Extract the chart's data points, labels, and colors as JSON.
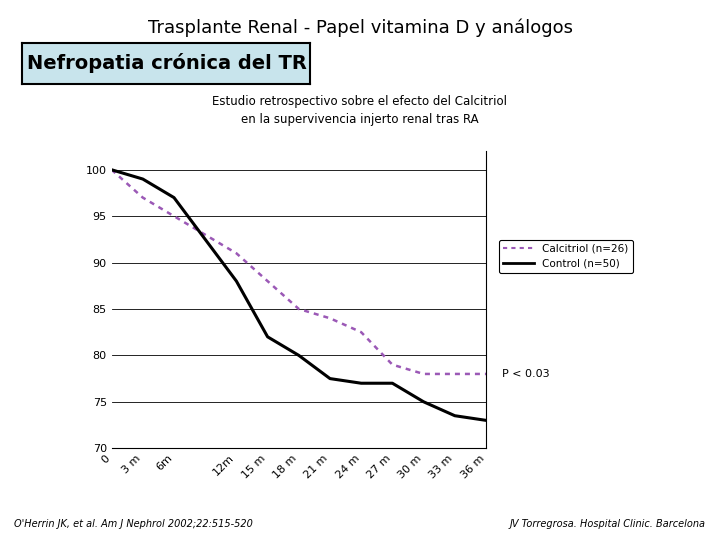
{
  "title": "Trasplante Renal - Papel vitamina D y análogos",
  "subtitle_line1": "Estudio retrospectivo sobre el efecto del Calcitriol",
  "subtitle_line2": "en la supervivencia injerto renal tras RA",
  "box_label": "Nefropatia crónica del TR",
  "x_labels": [
    "0",
    "3 m",
    "6m",
    "12m",
    "15 m",
    "18 m",
    "21 m",
    "24 m",
    "27 m",
    "30 m",
    "33 m",
    "36 m"
  ],
  "x_values": [
    0,
    3,
    6,
    12,
    15,
    18,
    21,
    24,
    27,
    30,
    33,
    36
  ],
  "calcitriol_y": [
    100,
    97,
    95,
    91,
    88,
    85,
    84,
    82.5,
    79,
    78,
    78,
    78
  ],
  "control_y": [
    100,
    99,
    97,
    88,
    82,
    80,
    77.5,
    77,
    77,
    75,
    73.5,
    73
  ],
  "calcitriol_color": "#9B59B6",
  "control_color": "#000000",
  "ylim": [
    70,
    102
  ],
  "yticks": [
    70,
    75,
    80,
    85,
    90,
    95,
    100
  ],
  "legend_calcitriol": "Calcitriol (n=26)",
  "legend_control": "Control (n=50)",
  "pvalue_text": "P < 0.03",
  "footer_left": "O'Herrin JK, et al. Am J Nephrol 2002;22:515-520",
  "footer_right": "JV Torregrosa. Hospital Clinic. Barcelona",
  "bg_color": "#ffffff",
  "box_bg": "#c8e4ec",
  "box_border": "#000000"
}
